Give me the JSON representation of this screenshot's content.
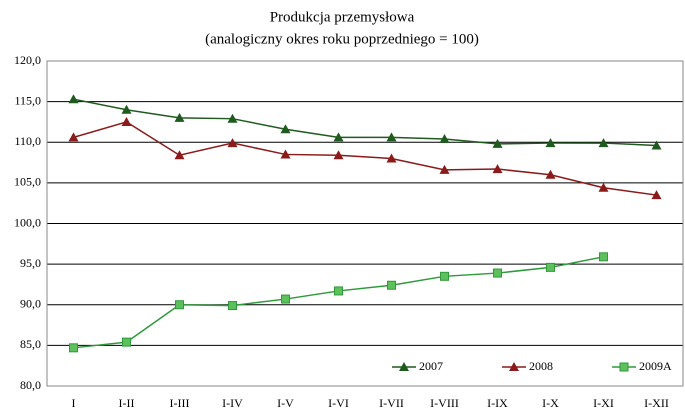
{
  "chart_data": {
    "type": "line",
    "title": "Produkcja przemysłowa",
    "subtitle": "(analogiczny okres roku poprzedniego = 100)",
    "categories": [
      "I",
      "I-II",
      "I-III",
      "I-IV",
      "I-V",
      "I-VI",
      "I-VII",
      "I-VIII",
      "I-IX",
      "I-X",
      "I-XI",
      "I-XII"
    ],
    "series": [
      {
        "name": "2007",
        "color": "#1f5a1f",
        "marker": "triangle",
        "values": [
          115.3,
          114.0,
          113.0,
          112.9,
          111.6,
          110.6,
          110.6,
          110.4,
          109.8,
          109.9,
          109.9,
          109.6
        ]
      },
      {
        "name": "2008",
        "color": "#8b1a1a",
        "marker": "triangle",
        "values": [
          110.6,
          112.5,
          108.4,
          109.9,
          108.5,
          108.4,
          108.0,
          106.6,
          106.7,
          106.0,
          104.4,
          103.5
        ]
      },
      {
        "name": "2009A",
        "color": "#2e9a3a",
        "marker": "square",
        "values": [
          84.7,
          85.4,
          90.0,
          89.9,
          90.7,
          91.7,
          92.4,
          93.5,
          93.9,
          94.6,
          95.9,
          null
        ]
      }
    ],
    "ylim": [
      80,
      120
    ],
    "yticks": [
      {
        "value": 80,
        "label": "80,0"
      },
      {
        "value": 85,
        "label": "85,0"
      },
      {
        "value": 90,
        "label": "90,0"
      },
      {
        "value": 95,
        "label": "95,0"
      },
      {
        "value": 100,
        "label": "100,0"
      },
      {
        "value": 105,
        "label": "105,0"
      },
      {
        "value": 110,
        "label": "110,0"
      },
      {
        "value": 115,
        "label": "115,0"
      },
      {
        "value": 120,
        "label": "120,0"
      }
    ],
    "grid": true,
    "legend": "bottom-right"
  }
}
